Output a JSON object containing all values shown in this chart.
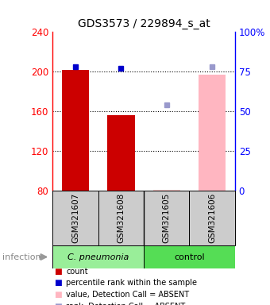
{
  "title": "GDS3573 / 229894_s_at",
  "samples": [
    "GSM321607",
    "GSM321608",
    "GSM321605",
    "GSM321606"
  ],
  "ylim_left": [
    80,
    240
  ],
  "ylim_right": [
    0,
    100
  ],
  "yticks_left": [
    80,
    120,
    160,
    200,
    240
  ],
  "yticks_right": [
    0,
    25,
    50,
    75,
    100
  ],
  "yticklabels_right": [
    "0",
    "25",
    "50",
    "75",
    "100%"
  ],
  "bar_values": [
    202,
    156,
    null,
    197
  ],
  "bar_colors": [
    "#cc0000",
    "#cc0000",
    null,
    "#ffb6c1"
  ],
  "dot_pct_values": [
    78,
    77,
    null,
    null
  ],
  "dot_pct_colors": [
    "#0000cc",
    "#0000cc",
    null,
    null
  ],
  "dot_absent_pct_values": [
    null,
    null,
    54,
    78
  ],
  "dot_absent_pct_color": "#9999cc",
  "bar_absent_values": [
    null,
    null,
    80.5,
    null
  ],
  "bar_absent_color": "#ffcccc",
  "gridline_values": [
    120,
    160,
    200
  ],
  "group1_label": "C. pneumonia",
  "group1_color": "#99ee99",
  "group2_label": "control",
  "group2_color": "#55dd55",
  "infection_label": "infection",
  "legend_items": [
    {
      "color": "#cc0000",
      "label": "count"
    },
    {
      "color": "#0000cc",
      "label": "percentile rank within the sample"
    },
    {
      "color": "#ffb6c1",
      "label": "value, Detection Call = ABSENT"
    },
    {
      "color": "#9999cc",
      "label": "rank, Detection Call = ABSENT"
    }
  ]
}
